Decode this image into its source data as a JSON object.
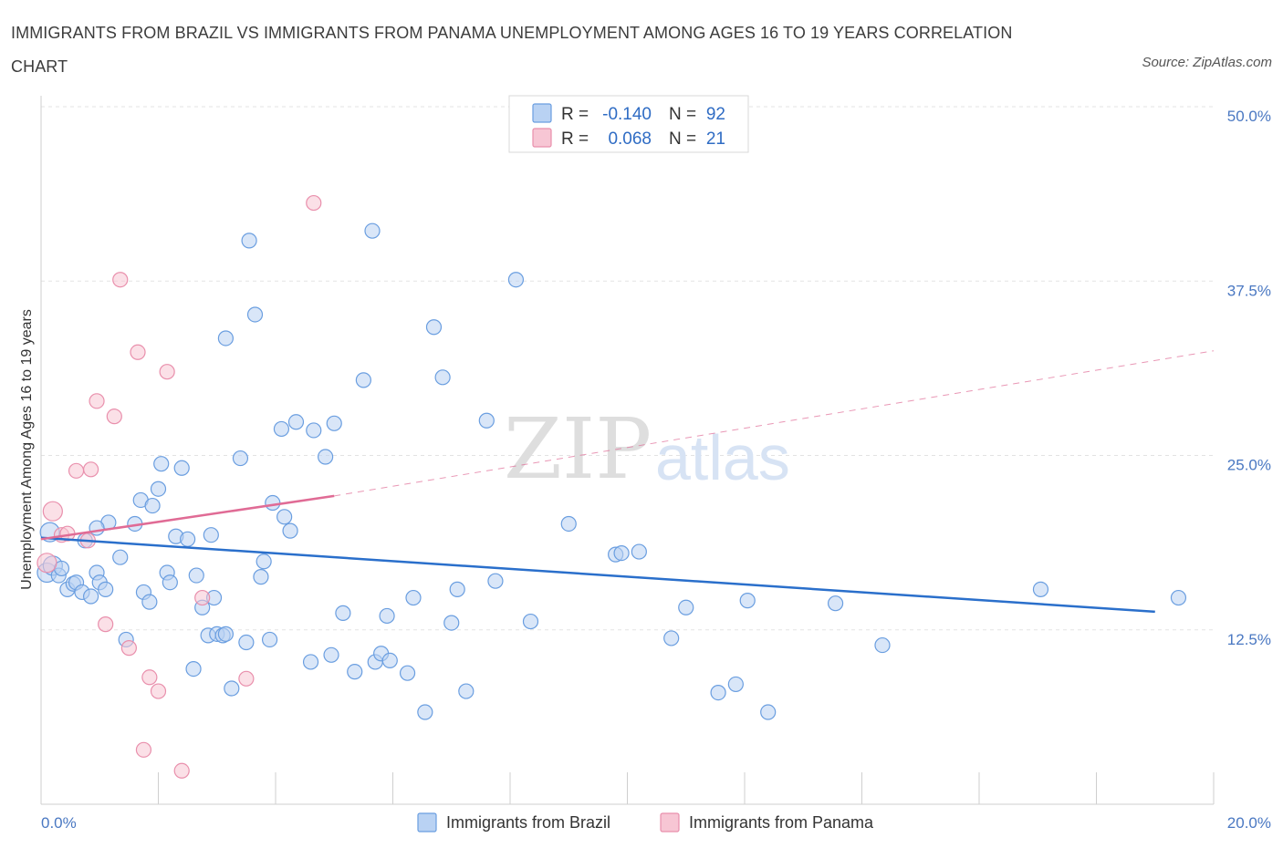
{
  "title": "IMMIGRANTS FROM BRAZIL VS IMMIGRANTS FROM PANAMA UNEMPLOYMENT AMONG AGES 16 TO 19 YEARS CORRELATION CHART",
  "source": "Source: ZipAtlas.com",
  "watermark": {
    "zip": "ZIP",
    "atlas": "atlas"
  },
  "colors": {
    "brazil_fill": "#b9d2f3",
    "brazil_stroke": "#6a9ee0",
    "brazil_line": "#2a6fcb",
    "panama_fill": "#f7c6d4",
    "panama_stroke": "#e98fac",
    "panama_line": "#e06b95",
    "grid": "#e3e3e3",
    "axis_label": "#4a78c2"
  },
  "legend": {
    "rows": [
      {
        "r_label": "R =",
        "r_value": "-0.140",
        "n_label": "N =",
        "n_value": "92"
      },
      {
        "r_label": "R =",
        "r_value": "0.068",
        "n_label": "N =",
        "n_value": "21"
      }
    ]
  },
  "chart_data": {
    "type": "scatter",
    "xlim": [
      0,
      20
    ],
    "ylim": [
      0,
      50
    ],
    "ylabel": "Unemployment Among Ages 16 to 19 years",
    "x_tick_labels": [
      "0.0%",
      "20.0%"
    ],
    "y_tick_labels": [
      "12.5%",
      "25.0%",
      "37.5%",
      "50.0%"
    ],
    "y_ticks": [
      12.5,
      25.0,
      37.5,
      50.0
    ],
    "grid": true,
    "legend_placement": "top-center",
    "series": [
      {
        "name": "Immigrants from Brazil",
        "R": -0.14,
        "N": 92,
        "trend": {
          "x": [
            0,
            19.0
          ],
          "y": [
            19.1,
            13.8
          ],
          "dashed_to": null
        },
        "points": [
          [
            0.1,
            16.6
          ],
          [
            0.2,
            17.1
          ],
          [
            0.15,
            19.5
          ],
          [
            0.3,
            16.4
          ],
          [
            0.35,
            16.9
          ],
          [
            0.45,
            15.4
          ],
          [
            0.55,
            15.8
          ],
          [
            0.6,
            15.9
          ],
          [
            0.7,
            15.2
          ],
          [
            0.75,
            18.9
          ],
          [
            0.85,
            14.9
          ],
          [
            0.95,
            16.6
          ],
          [
            1.0,
            15.9
          ],
          [
            1.1,
            15.4
          ],
          [
            1.15,
            20.2
          ],
          [
            0.95,
            19.8
          ],
          [
            1.35,
            17.7
          ],
          [
            1.45,
            11.8
          ],
          [
            1.6,
            20.1
          ],
          [
            1.7,
            21.8
          ],
          [
            1.75,
            15.2
          ],
          [
            1.85,
            14.5
          ],
          [
            1.9,
            21.4
          ],
          [
            2.0,
            22.6
          ],
          [
            2.05,
            24.4
          ],
          [
            2.15,
            16.6
          ],
          [
            2.2,
            15.9
          ],
          [
            2.3,
            19.2
          ],
          [
            2.4,
            24.1
          ],
          [
            2.5,
            19.0
          ],
          [
            2.6,
            9.7
          ],
          [
            2.65,
            16.4
          ],
          [
            2.75,
            14.1
          ],
          [
            2.85,
            12.1
          ],
          [
            2.9,
            19.3
          ],
          [
            2.95,
            14.8
          ],
          [
            3.0,
            12.2
          ],
          [
            3.1,
            12.1
          ],
          [
            3.15,
            12.2
          ],
          [
            3.15,
            33.4
          ],
          [
            3.25,
            8.3
          ],
          [
            3.4,
            24.8
          ],
          [
            3.5,
            11.6
          ],
          [
            3.55,
            40.4
          ],
          [
            3.65,
            35.1
          ],
          [
            3.75,
            16.3
          ],
          [
            3.8,
            17.4
          ],
          [
            3.9,
            11.8
          ],
          [
            3.95,
            21.6
          ],
          [
            4.1,
            26.9
          ],
          [
            4.15,
            20.6
          ],
          [
            4.25,
            19.6
          ],
          [
            4.35,
            27.4
          ],
          [
            4.6,
            10.2
          ],
          [
            4.65,
            26.8
          ],
          [
            4.85,
            24.9
          ],
          [
            4.95,
            10.7
          ],
          [
            5.0,
            27.3
          ],
          [
            5.15,
            13.7
          ],
          [
            5.35,
            9.5
          ],
          [
            5.5,
            30.4
          ],
          [
            5.7,
            10.2
          ],
          [
            5.8,
            10.8
          ],
          [
            5.9,
            13.5
          ],
          [
            5.95,
            10.3
          ],
          [
            5.65,
            41.1
          ],
          [
            6.25,
            9.4
          ],
          [
            6.35,
            14.8
          ],
          [
            6.55,
            6.6
          ],
          [
            6.7,
            34.2
          ],
          [
            6.85,
            30.6
          ],
          [
            7.0,
            13.0
          ],
          [
            7.1,
            15.4
          ],
          [
            7.25,
            8.1
          ],
          [
            7.6,
            27.5
          ],
          [
            7.75,
            16.0
          ],
          [
            8.1,
            37.6
          ],
          [
            8.35,
            13.1
          ],
          [
            9.0,
            20.1
          ],
          [
            9.8,
            17.9
          ],
          [
            9.9,
            18.0
          ],
          [
            10.2,
            18.1
          ],
          [
            10.75,
            11.9
          ],
          [
            11.0,
            14.1
          ],
          [
            11.55,
            8.0
          ],
          [
            11.85,
            8.6
          ],
          [
            12.05,
            14.6
          ],
          [
            12.4,
            6.6
          ],
          [
            13.55,
            14.4
          ],
          [
            14.35,
            11.4
          ],
          [
            17.05,
            15.4
          ],
          [
            19.4,
            14.8
          ]
        ]
      },
      {
        "name": "Immigrants from Panama",
        "R": 0.068,
        "N": 21,
        "trend": {
          "x": [
            0,
            5.0
          ],
          "y": [
            19.0,
            22.1
          ],
          "dashed_to": [
            20.0,
            32.5
          ]
        },
        "points": [
          [
            0.1,
            17.3
          ],
          [
            0.2,
            21.0
          ],
          [
            0.35,
            19.3
          ],
          [
            0.45,
            19.4
          ],
          [
            0.6,
            23.9
          ],
          [
            0.85,
            24.0
          ],
          [
            0.8,
            18.9
          ],
          [
            0.95,
            28.9
          ],
          [
            1.1,
            12.9
          ],
          [
            1.25,
            27.8
          ],
          [
            1.35,
            37.6
          ],
          [
            1.5,
            11.2
          ],
          [
            1.65,
            32.4
          ],
          [
            1.75,
            3.9
          ],
          [
            1.85,
            9.1
          ],
          [
            2.0,
            8.1
          ],
          [
            2.15,
            31.0
          ],
          [
            2.4,
            2.4
          ],
          [
            2.75,
            14.8
          ],
          [
            3.5,
            9.0
          ],
          [
            4.65,
            43.1
          ]
        ]
      }
    ]
  }
}
